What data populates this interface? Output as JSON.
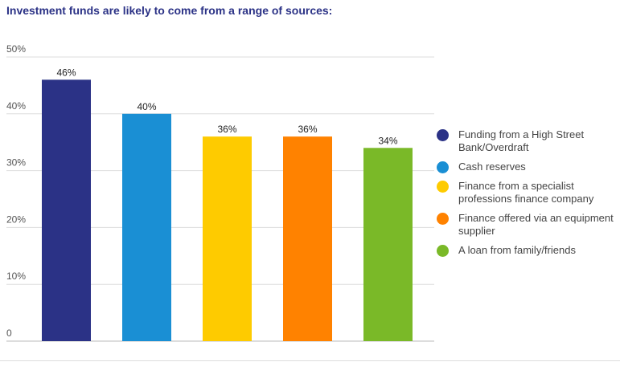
{
  "chart_data": {
    "type": "bar",
    "title": "Investment funds are likely to come from a range of sources:",
    "categories": [
      "Funding from a High Street Bank/Overdraft",
      "Cash reserves",
      "Finance from a specialist professions finance company",
      "Finance offered via an equipment supplier",
      "A loan from family/friends"
    ],
    "values": [
      46,
      40,
      36,
      36,
      34
    ],
    "data_labels": [
      "46%",
      "40%",
      "36%",
      "36%",
      "34%"
    ],
    "colors": [
      "#2b3286",
      "#1a8fd4",
      "#fecb00",
      "#ff8200",
      "#7ab928"
    ],
    "yticks": [
      0,
      10,
      20,
      30,
      40,
      50
    ],
    "ytick_labels": [
      "0",
      "10%",
      "20%",
      "30%",
      "40%",
      "50%"
    ],
    "ylim": [
      0,
      50
    ],
    "xlabel": "",
    "ylabel": "",
    "grid": true,
    "legend": "right"
  }
}
